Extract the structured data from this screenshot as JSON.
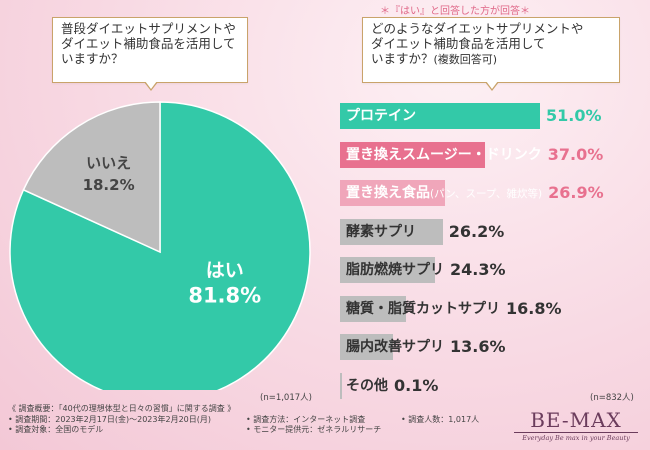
{
  "left_question": {
    "line1": "普段ダイエットサプリメントや",
    "line2": "ダイエット補助食品を活用して",
    "line3": "いますか？"
  },
  "right_note": "＊『はい』と回答した方が回答＊",
  "right_question": {
    "line1": "どのようなダイエットサプリメントや",
    "line2": "ダイエット補助食品を活用して",
    "line3": "いますか？",
    "line3_suffix": "(複数回答可)"
  },
  "left_n": "(n=1,017人)",
  "right_n": "(n=832人)",
  "colors": {
    "teal": "#33c9a8",
    "pink": "#e8718f",
    "pink_light": "#f0a6ba",
    "gray": "#bdbdbd"
  },
  "chart_data": [
    {
      "type": "pie",
      "labels": [
        "はい",
        "いいえ"
      ],
      "values": [
        81.8,
        18.2
      ],
      "value_labels": [
        "81.8%",
        "18.2%"
      ],
      "colors": [
        "#33c9a8",
        "#bdbdbd"
      ]
    },
    {
      "type": "bar",
      "orientation": "horizontal",
      "categories": [
        "プロテイン",
        "置き換えスムージー・ドリンク",
        "置き換え食品",
        "酵素サプリ",
        "脂肪燃焼サプリ",
        "糖質・脂質カットサプリ",
        "腸内改善サプリ",
        "その他"
      ],
      "category_subs": [
        "",
        "",
        "(パン、スープ、雑炊等)",
        "",
        "",
        "",
        "",
        ""
      ],
      "values": [
        51.0,
        37.0,
        26.9,
        26.2,
        24.3,
        16.8,
        13.6,
        0.1
      ],
      "value_labels": [
        "51.0%",
        "37.0%",
        "26.9%",
        "26.2%",
        "24.3%",
        "16.8%",
        "13.6%",
        "0.1%"
      ],
      "colors": [
        "#33c9a8",
        "#e8718f",
        "#f0a6ba",
        "#bdbdbd",
        "#bdbdbd",
        "#bdbdbd",
        "#bdbdbd",
        "#bdbdbd"
      ]
    }
  ],
  "footer": {
    "line1": "《 調査概要：「40代の理想体型と日々の習慣」に関する調査 》",
    "period": "• 調査期間：2023年2月17日(金)～2023年2月20日(月)",
    "method": "• 調査方法：インターネット調査",
    "count": "• 調査人数：1,017人",
    "target": "• 調査対象：全国のモデル",
    "provider": "• モニター提供元：ゼネラルリサーチ"
  },
  "logo": {
    "main": "BE-MAX",
    "sub": "Everyday Be max in your Beauty"
  }
}
